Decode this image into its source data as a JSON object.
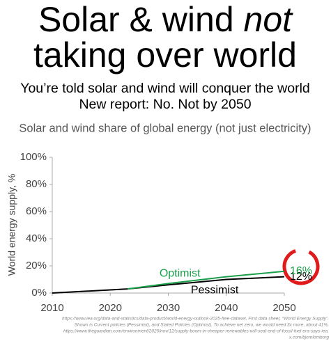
{
  "header": {
    "line1": "Solar & wind",
    "line1_emphasis": "not",
    "line2": "taking over world",
    "subtitle1": "You’re told solar and wind will conquer the world",
    "subtitle2": "New report: No. Not by 2050"
  },
  "chart_data": {
    "type": "line",
    "title": "Solar and wind share of global energy (not just electricity)",
    "y_label": "World energy supply, %",
    "x": [
      2010,
      2023,
      2030,
      2040,
      2050
    ],
    "series": [
      {
        "name": "Pessimist",
        "color": "#000000",
        "values": [
          0,
          3,
          6,
          10,
          12
        ],
        "value_labels": [
          null,
          null,
          null,
          null,
          "12%"
        ]
      },
      {
        "name": "Optimist",
        "color": "#1aa04a",
        "values": [
          null,
          3,
          7,
          12,
          16
        ],
        "value_labels": [
          null,
          null,
          null,
          null,
          "16%"
        ]
      }
    ],
    "xlim": [
      2010,
      2050
    ],
    "xticks": [
      2010,
      2020,
      2030,
      2040,
      2050
    ],
    "ylim": [
      0,
      100
    ],
    "yticks": [
      {
        "value": 0,
        "label": "0%"
      },
      {
        "value": 20,
        "label": "20%"
      },
      {
        "value": 40,
        "label": "40%"
      },
      {
        "value": 60,
        "label": "60%"
      },
      {
        "value": 80,
        "label": "80%"
      },
      {
        "value": 100,
        "label": "100%"
      }
    ],
    "grid": false
  },
  "footnote": [
    "https://www.iea.org/data-and-statistics/data-product/world-energy-outlook-2025-free-dataset, First data sheet, “World Energy Supply”.",
    "Shown is Current policies (Pessimist), and Stated Policies (Optimist). To achieve net zero, we would need 3x more, about 41%,",
    "https://www.theguardian.com/environment/2025/nov/12/supply-boom-in-cheaper-renewables-will-seal-end-of-fossil-fuel-era-says-iea.",
    "x.com/bjornlomborg"
  ]
}
